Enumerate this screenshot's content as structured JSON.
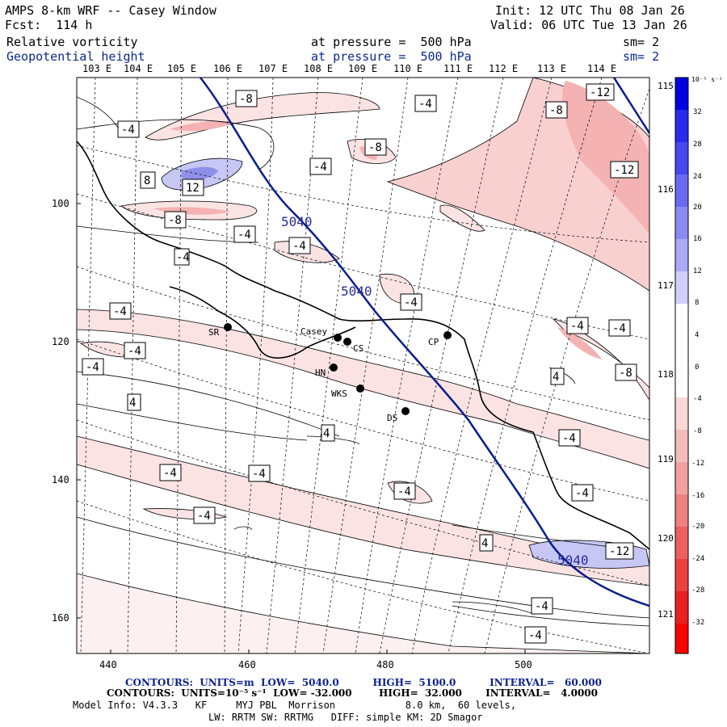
{
  "header": {
    "model_title": "AMPS 8-km WRF -- Casey Window",
    "forecast": "Fcst:  114 h",
    "init": "Init: 12 UTC Thu 08 Jan 26",
    "valid": "Valid: 06 UTC Tue 13 Jan 26",
    "field1_name": "Relative vorticity",
    "field1_level": "at pressure =  500 hPa",
    "field1_smooth": "sm= 2",
    "field2_name": "Geopotential height",
    "field2_level": "at pressure =  500 hPa",
    "field2_smooth": "sm= 2"
  },
  "lon_labels": [
    "103 E",
    "104 E",
    "105 E",
    "106 E",
    "107 E",
    "108 E",
    "109 E",
    "110 E",
    "111 E",
    "112 E",
    "113 E",
    "114 E"
  ],
  "lat_labels_right": [
    "115 E",
    "116 E",
    "117 E",
    "118 E",
    "119 E",
    "120 E",
    "121 E"
  ],
  "y_axis": [
    "100",
    "120",
    "140",
    "160"
  ],
  "x_axis": [
    "440",
    "460",
    "480",
    "500"
  ],
  "stations": [
    {
      "name": "SR"
    },
    {
      "name": "Casey"
    },
    {
      "name": "CS"
    },
    {
      "name": "CP"
    },
    {
      "name": "HN"
    },
    {
      "name": "WKS"
    },
    {
      "name": "DS"
    }
  ],
  "height_labels": [
    "5040",
    "5040",
    "5040"
  ],
  "vort_labels": [
    "-8",
    "-4",
    "-8",
    "-4",
    "-8",
    "-12",
    "-12",
    "-4",
    "8",
    "12",
    "-8",
    "-4",
    "-4",
    "-4",
    "-4",
    "-4",
    "-4",
    "-4",
    "-4",
    "-8",
    "4",
    "4",
    "4",
    "-4",
    "-4",
    "-4",
    "-4",
    "-4",
    "-4",
    "4",
    "-12",
    "-4",
    "-4",
    "-4"
  ],
  "colorbar": {
    "unit_label": "10⁻⁵ s⁻¹",
    "ticks": [
      "32",
      "28",
      "24",
      "20",
      "16",
      "12",
      "8",
      "4",
      "0",
      "-4",
      "-8",
      "-12",
      "-16",
      "-20",
      "-24",
      "-28",
      "-32"
    ]
  },
  "footer": {
    "height_contours": "CONTOURS:  UNITS=m  LOW=  5040.0          HIGH=  5100.0          INTERVAL=   60.000",
    "vort_contours": "CONTOURS:  UNITS=10⁻⁵ s⁻¹  LOW= -32.000        HIGH=  32.000       INTERVAL=   4.0000",
    "model_info": "Model Info: V4.3.3   KF     MYJ PBL  Morrison            8.0 km,  60 levels,",
    "model_info2": "LW: RRTM SW: RRTMG   DIFF: simple KM: 2D Smagor"
  }
}
